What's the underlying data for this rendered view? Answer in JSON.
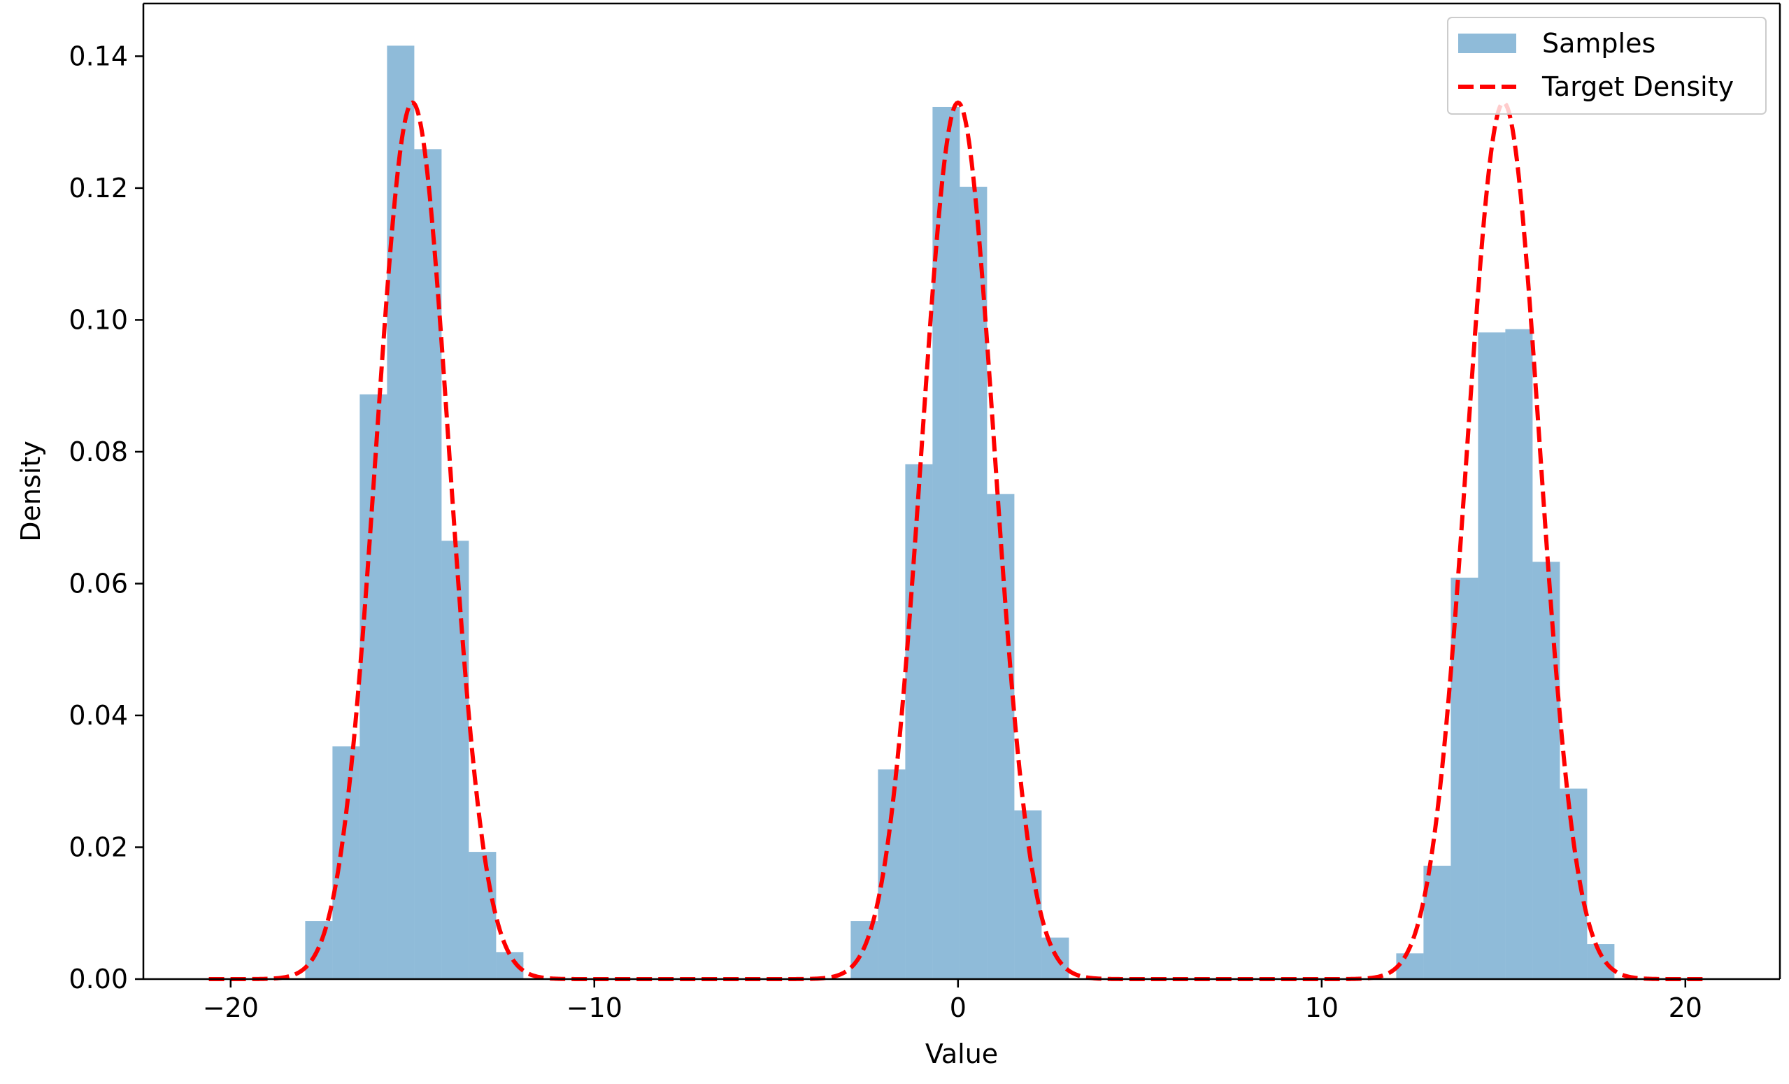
{
  "colors": {
    "bar": "#1f77b4",
    "bar_alpha": 0.5,
    "target_line": "#ff0000",
    "axes": "#000000",
    "background": "#ffffff"
  },
  "chart_data": {
    "type": "bar",
    "title": "",
    "xlabel": "Value",
    "ylabel": "Density",
    "xlim": [
      -22.4,
      22.6
    ],
    "ylim": [
      0,
      0.148
    ],
    "xticks": [
      -20,
      -10,
      0,
      10,
      20
    ],
    "xtick_labels": [
      "−20",
      "−10",
      "0",
      "10",
      "20"
    ],
    "yticks": [
      0,
      0.02,
      0.04,
      0.06,
      0.08,
      0.1,
      0.12,
      0.14
    ],
    "ytick_labels": [
      "0.00",
      "0.02",
      "0.04",
      "0.06",
      "0.08",
      "0.10",
      "0.12",
      "0.14"
    ],
    "grid": false,
    "legend": {
      "location": "top-right",
      "entries": [
        {
          "label": "Samples",
          "kind": "patch"
        },
        {
          "label": "Target Density",
          "kind": "dashed-line"
        }
      ]
    },
    "series": [
      {
        "name": "Samples",
        "kind": "histogram",
        "bins": [
          {
            "x0": -17.95,
            "x1": -17.2,
            "density": 0.0088
          },
          {
            "x0": -17.2,
            "x1": -16.45,
            "density": 0.0353
          },
          {
            "x0": -16.45,
            "x1": -15.7,
            "density": 0.0887
          },
          {
            "x0": -15.7,
            "x1": -14.95,
            "density": 0.1416
          },
          {
            "x0": -14.95,
            "x1": -14.2,
            "density": 0.1259
          },
          {
            "x0": -14.2,
            "x1": -13.45,
            "density": 0.0665
          },
          {
            "x0": -13.45,
            "x1": -12.7,
            "density": 0.0193
          },
          {
            "x0": -12.7,
            "x1": -11.95,
            "density": 0.0041
          },
          {
            "x0": -2.95,
            "x1": -2.2,
            "density": 0.0088
          },
          {
            "x0": -2.2,
            "x1": -1.45,
            "density": 0.0318
          },
          {
            "x0": -1.45,
            "x1": -0.7,
            "density": 0.0781
          },
          {
            "x0": -0.7,
            "x1": 0.05,
            "density": 0.1323
          },
          {
            "x0": 0.05,
            "x1": 0.8,
            "density": 0.1202
          },
          {
            "x0": 0.8,
            "x1": 1.55,
            "density": 0.0736
          },
          {
            "x0": 1.55,
            "x1": 2.3,
            "density": 0.0256
          },
          {
            "x0": 2.3,
            "x1": 3.05,
            "density": 0.0063
          },
          {
            "x0": 12.05,
            "x1": 12.8,
            "density": 0.0039
          },
          {
            "x0": 12.8,
            "x1": 13.55,
            "density": 0.0172
          },
          {
            "x0": 13.55,
            "x1": 14.3,
            "density": 0.0609
          },
          {
            "x0": 14.3,
            "x1": 15.05,
            "density": 0.0981
          },
          {
            "x0": 15.05,
            "x1": 15.8,
            "density": 0.0986
          },
          {
            "x0": 15.8,
            "x1": 16.55,
            "density": 0.0633
          },
          {
            "x0": 16.55,
            "x1": 17.3,
            "density": 0.0289
          },
          {
            "x0": 17.3,
            "x1": 18.05,
            "density": 0.0053
          }
        ]
      },
      {
        "name": "Target Density",
        "kind": "dashed-line",
        "function": "mixture_of_gaussians",
        "components": [
          {
            "mean": -15,
            "std": 1,
            "weight": 0.3333
          },
          {
            "mean": 0,
            "std": 1,
            "weight": 0.3333
          },
          {
            "mean": 15,
            "std": 1,
            "weight": 0.3333
          }
        ],
        "x_range": [
          -20.6,
          20.6
        ],
        "peak_density": 0.133
      }
    ]
  }
}
